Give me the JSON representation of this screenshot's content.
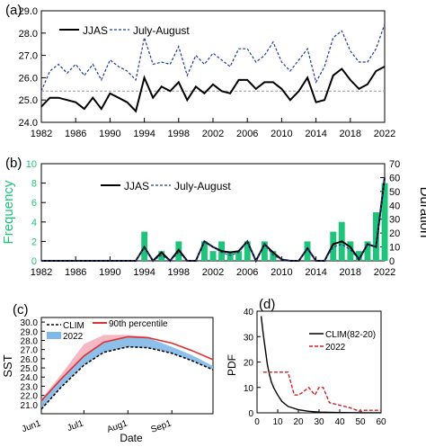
{
  "chart_data": [
    {
      "panel": "(a)",
      "type": "line",
      "x": [
        1982,
        1983,
        1984,
        1985,
        1986,
        1987,
        1988,
        1989,
        1990,
        1991,
        1992,
        1993,
        1994,
        1995,
        1996,
        1997,
        1998,
        1999,
        2000,
        2001,
        2002,
        2003,
        2004,
        2005,
        2006,
        2007,
        2008,
        2009,
        2010,
        2011,
        2012,
        2013,
        2014,
        2015,
        2016,
        2017,
        2018,
        2019,
        2020,
        2021,
        2022
      ],
      "series": [
        {
          "name": "JJAS",
          "style": "solid",
          "color": "#000000",
          "values": [
            24.7,
            25.1,
            25.1,
            25.0,
            24.9,
            24.6,
            25.1,
            24.6,
            25.3,
            25.1,
            24.9,
            24.5,
            26.0,
            25.1,
            25.6,
            25.4,
            25.8,
            25.0,
            25.6,
            25.3,
            25.7,
            25.4,
            25.3,
            25.9,
            25.9,
            25.5,
            25.8,
            25.8,
            25.5,
            25.0,
            25.4,
            26.0,
            24.9,
            25.0,
            26.1,
            26.4,
            25.9,
            25.5,
            25.7,
            26.3,
            26.5
          ]
        },
        {
          "name": "July-August",
          "style": "dashed",
          "color": "#1f3a9a",
          "values": [
            25.4,
            26.3,
            26.6,
            26.2,
            26.6,
            26.1,
            26.6,
            25.9,
            26.8,
            26.5,
            26.3,
            25.9,
            27.8,
            26.6,
            26.7,
            26.6,
            27.4,
            26.1,
            27.0,
            26.6,
            27.1,
            26.8,
            26.5,
            27.3,
            27.3,
            26.7,
            27.0,
            27.6,
            26.7,
            26.3,
            26.8,
            27.3,
            25.8,
            26.5,
            27.8,
            28.1,
            27.2,
            26.7,
            26.7,
            27.3,
            28.4
          ]
        }
      ],
      "reference_line": 25.4,
      "xticks": [
        "1982",
        "1986",
        "1990",
        "1994",
        "1998",
        "2002",
        "2006",
        "2010",
        "2014",
        "2018",
        "2022"
      ],
      "yticks": [
        "24.0",
        "25.0",
        "26.0",
        "27.0",
        "28.0",
        "29.0"
      ],
      "ylim": [
        24.0,
        29.0
      ],
      "legend_placement": "top-left"
    },
    {
      "panel": "(b)",
      "type": "bar",
      "x": [
        1982,
        1983,
        1984,
        1985,
        1986,
        1987,
        1988,
        1989,
        1990,
        1991,
        1992,
        1993,
        1994,
        1995,
        1996,
        1997,
        1998,
        1999,
        2000,
        2001,
        2002,
        2003,
        2004,
        2005,
        2006,
        2007,
        2008,
        2009,
        2010,
        2011,
        2012,
        2013,
        2014,
        2015,
        2016,
        2017,
        2018,
        2019,
        2020,
        2021,
        2022
      ],
      "frequency": [
        0,
        0,
        0,
        0,
        0,
        0,
        0,
        0,
        0,
        0,
        0,
        0,
        3,
        0,
        1,
        0,
        2,
        0,
        0,
        2,
        1,
        2,
        1,
        1,
        2,
        0,
        2,
        1,
        0,
        0,
        0,
        2,
        0,
        0,
        3,
        4,
        2,
        1,
        2,
        5,
        8
      ],
      "series": [
        {
          "name": "JJAS",
          "style": "solid",
          "color": "#000000",
          "values": [
            0,
            0,
            0,
            0,
            0,
            0,
            0,
            0,
            0,
            0,
            0,
            0,
            10,
            0,
            6,
            0,
            8,
            0,
            0,
            14,
            10,
            7,
            6,
            7,
            14,
            0,
            12,
            6,
            1,
            0,
            0,
            9,
            0,
            0,
            12,
            14,
            10,
            1,
            12,
            10,
            60
          ]
        },
        {
          "name": "July-August",
          "style": "dashed",
          "color": "#1f3a9a",
          "values": [
            0,
            0,
            0,
            0,
            0,
            0,
            0,
            0,
            0,
            0,
            0,
            0,
            10,
            0,
            4,
            0,
            6,
            0,
            0,
            14,
            10,
            6,
            4,
            6,
            14,
            0,
            12,
            4,
            1,
            0,
            0,
            9,
            0,
            0,
            10,
            12,
            8,
            1,
            12,
            10,
            60
          ]
        }
      ],
      "ylabel": "Frequency",
      "y2label": "Duration",
      "xticks": [
        "1982",
        "1986",
        "1990",
        "1994",
        "1998",
        "2002",
        "2006",
        "2010",
        "2014",
        "2018",
        "2022"
      ],
      "yticks": [
        "0",
        "2",
        "4",
        "6",
        "8",
        "10"
      ],
      "y2ticks": [
        "0",
        "10",
        "20",
        "30",
        "40",
        "50",
        "60",
        "70"
      ],
      "ylim": [
        0,
        10
      ],
      "y2lim": [
        0,
        70
      ],
      "bar_color": "#1fc47a",
      "legend_placement": "top-center"
    },
    {
      "panel": "(c)",
      "type": "line",
      "x": [
        "2022-06-01",
        "2022-06-15",
        "2022-07-01",
        "2022-07-15",
        "2022-08-01",
        "2022-08-15",
        "2022-09-01",
        "2022-09-15",
        "2022-09-30"
      ],
      "series": [
        {
          "name": "CLIM",
          "style": "dashed",
          "color": "#000000",
          "values": [
            20.5,
            22.9,
            25.3,
            26.7,
            27.3,
            27.2,
            26.6,
            25.8,
            24.8
          ]
        },
        {
          "name": "90th percentile",
          "style": "solid",
          "color": "#e03030",
          "values": [
            21.4,
            23.8,
            26.3,
            27.8,
            28.4,
            28.3,
            27.7,
            26.9,
            25.9
          ]
        },
        {
          "name": "2022",
          "style": "area",
          "color": "#7fb8e8",
          "values": [
            21.6,
            24.3,
            27.6,
            28.6,
            28.6,
            28.4,
            27.3,
            26.4,
            25.2
          ]
        }
      ],
      "area_colors": {
        "above_threshold": "#f4b8c4",
        "below_threshold": "#7fb8e8"
      },
      "xlabel": "Date",
      "ylabel": "SST",
      "xticks": [
        "Jun1",
        "Jul1",
        "Aug1",
        "Sep1"
      ],
      "yticks": [
        "21.0",
        "22.0",
        "23.0",
        "24.0",
        "25.0",
        "26.0",
        "27.0",
        "28.0",
        "29.0",
        "30.0"
      ],
      "ylim": [
        20.0,
        30.5
      ],
      "legend_placement": "top-left"
    },
    {
      "panel": "(d)",
      "type": "line",
      "series": [
        {
          "name": "CLIM(82-20)",
          "style": "solid",
          "color": "#000000",
          "x": [
            2,
            3,
            4,
            5,
            6,
            7,
            8,
            10,
            12,
            15,
            20,
            25,
            30,
            40,
            50,
            60
          ],
          "values": [
            38,
            31,
            25,
            19,
            15,
            12,
            10,
            7,
            4.5,
            2.5,
            1.2,
            0.6,
            0.3,
            0.1,
            0.05,
            0.02
          ]
        },
        {
          "name": "2022",
          "style": "dashed",
          "color": "#d02020",
          "x": [
            3,
            5,
            8,
            10,
            12,
            15,
            18,
            20,
            22,
            25,
            28,
            30,
            32,
            35,
            40,
            45,
            50,
            52,
            55,
            58,
            60
          ],
          "values": [
            16,
            16,
            16,
            16,
            16,
            16,
            7,
            7,
            8,
            10,
            7,
            10,
            10,
            4,
            3,
            2,
            0.5,
            1,
            1,
            1,
            1
          ]
        }
      ],
      "ylabel": "PDF",
      "xticks": [
        "0",
        "10",
        "20",
        "30",
        "40",
        "50",
        "60"
      ],
      "yticks": [
        "0",
        "10",
        "20",
        "30",
        "40"
      ],
      "xlim": [
        0,
        60
      ],
      "ylim": [
        0,
        40
      ],
      "legend_placement": "right"
    }
  ],
  "panel_labels": [
    "(a)",
    "(b)",
    "(c)",
    "(d)"
  ],
  "legend": {
    "a_jjas": "JJAS",
    "a_ja": "July-August",
    "b_jjas": "JJAS",
    "b_ja": "July-August",
    "c_clim": "CLIM",
    "c_p90": "90th percentile",
    "c_2022": "2022",
    "d_clim": "CLIM(82-20)",
    "d_2022": "2022"
  },
  "axis_titles": {
    "b_left": "Frequency",
    "b_right": "Duration",
    "c_y": "SST",
    "c_x": "Date",
    "d_y": "PDF"
  },
  "colors": {
    "frequency_label": "#1fc47a",
    "frequency_ticks": "#1fc47a"
  }
}
